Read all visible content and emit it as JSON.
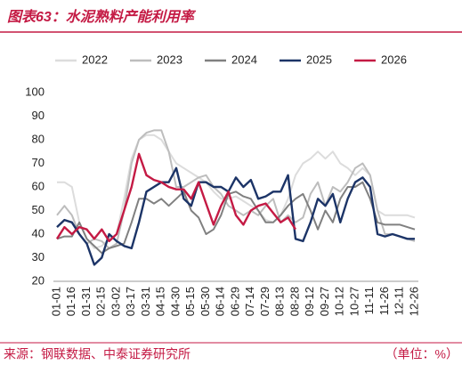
{
  "title": "图表63：水泥熟料产能利用率",
  "source": "来源：钢联数据、中泰证券研究所",
  "unit": "（单位：%）",
  "chart_data": {
    "type": "line",
    "categories": [
      "01-01",
      null,
      "01-16",
      null,
      "01-31",
      null,
      "02-15",
      null,
      "03-02",
      null,
      "03-17",
      null,
      "03-31",
      null,
      "04-15",
      null,
      "04-30",
      null,
      "05-15",
      null,
      "05-30",
      null,
      "06-14",
      null,
      "06-29",
      null,
      "07-14",
      null,
      "07-29",
      null,
      "08-13",
      null,
      "08-28",
      null,
      "09-12",
      null,
      "09-27",
      null,
      "10-12",
      null,
      "10-27",
      null,
      "11-11",
      null,
      "11-26",
      null,
      "12-11",
      null,
      "12-26"
    ],
    "series": [
      {
        "name": "2022",
        "color": "#dcdcdc",
        "values": [
          62,
          62,
          60,
          45,
          38,
          34,
          35,
          38,
          40,
          55,
          72,
          80,
          82,
          82,
          80,
          75,
          70,
          68,
          66,
          64,
          62,
          58,
          55,
          55,
          56,
          54,
          52,
          50,
          46,
          45,
          48,
          55,
          65,
          70,
          72,
          75,
          72,
          75,
          70,
          68,
          65,
          68,
          65,
          50,
          48,
          48,
          48,
          48,
          47
        ]
      },
      {
        "name": "2023",
        "color": "#bdbdbd",
        "values": [
          48,
          52,
          48,
          40,
          36,
          38,
          37,
          34,
          36,
          50,
          70,
          80,
          83,
          84,
          84,
          75,
          60,
          60,
          62,
          64,
          65,
          60,
          57,
          52,
          50,
          48,
          50,
          48,
          52,
          55,
          45,
          48,
          45,
          47,
          57,
          62,
          52,
          60,
          58,
          62,
          68,
          70,
          65,
          50,
          40,
          40,
          39,
          38,
          37
        ]
      },
      {
        "name": "2024",
        "color": "#808080",
        "values": [
          38,
          39,
          39,
          45,
          38,
          35,
          32,
          34,
          35,
          36,
          45,
          55,
          55,
          53,
          55,
          52,
          55,
          58,
          50,
          47,
          40,
          42,
          48,
          57,
          58,
          56,
          55,
          50,
          45,
          45,
          48,
          52,
          55,
          57,
          50,
          42,
          50,
          45,
          55,
          60,
          60,
          62,
          55,
          45,
          44,
          44,
          44,
          43,
          42
        ]
      },
      {
        "name": "2025",
        "color": "#1c3467",
        "values": [
          43,
          46,
          45,
          40,
          36,
          27,
          30,
          40,
          37,
          35,
          34,
          45,
          58,
          60,
          62,
          62,
          68,
          55,
          52,
          62,
          62,
          60,
          60,
          58,
          64,
          60,
          63,
          55,
          56,
          58,
          58,
          65,
          38,
          37,
          45,
          55,
          52,
          57,
          45,
          55,
          62,
          64,
          60,
          40,
          39,
          40,
          39,
          38,
          38
        ]
      },
      {
        "name": "2026",
        "color": "#c41a44",
        "values": [
          38,
          43,
          40,
          43,
          42,
          38,
          42,
          37,
          40,
          50,
          60,
          74,
          65,
          63,
          62,
          60,
          59,
          59,
          55,
          62,
          53,
          44,
          52,
          58,
          48,
          44,
          50,
          52,
          53,
          49,
          45,
          47,
          42,
          null,
          null,
          null,
          null,
          null,
          null,
          null,
          null,
          null,
          null,
          null,
          null,
          null,
          null,
          null,
          null
        ]
      }
    ],
    "ylim": [
      20,
      100
    ],
    "yticks": [
      20,
      30,
      40,
      50,
      60,
      70,
      80,
      90,
      100
    ]
  }
}
